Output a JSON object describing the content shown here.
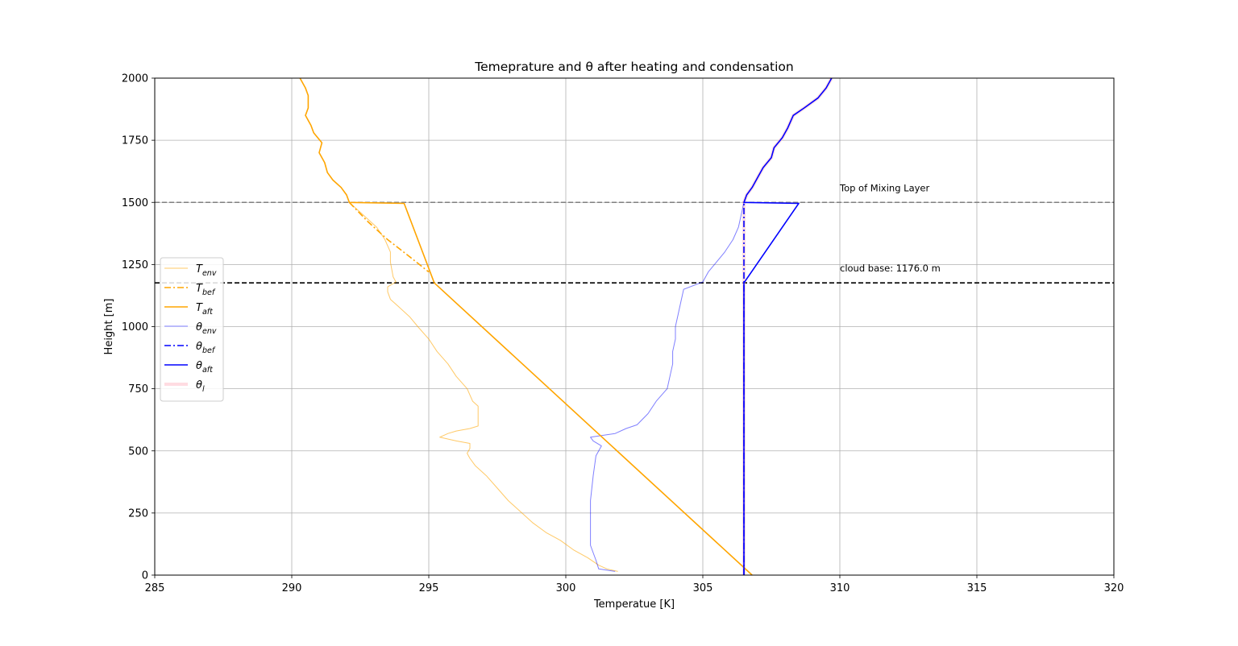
{
  "chart_data": {
    "type": "line",
    "title": "Temeprature and θ after heating and condensation",
    "xlabel": "Temperatue [K]",
    "ylabel": "Height [m]",
    "xlim": [
      285,
      320
    ],
    "ylim": [
      0,
      2000
    ],
    "xticks": [
      "285",
      "290",
      "295",
      "300",
      "305",
      "310",
      "315",
      "320"
    ],
    "yticks": [
      "0",
      "250",
      "500",
      "750",
      "1000",
      "1250",
      "1500",
      "1750",
      "2000"
    ],
    "grid": true,
    "legend_position": "center-left",
    "colors": {
      "orange": "#ffa500",
      "blue": "#0000ff",
      "pink": "#ffc0cb",
      "gray": "#808080",
      "black": "#000000"
    },
    "annotations": [
      {
        "name": "top-of-mixing-layer",
        "text": "Top of Mixing Layer",
        "x": 310,
        "y": 1545
      },
      {
        "name": "cloud-base",
        "text": "cloud base: 1176.0 m",
        "x": 310,
        "y": 1222
      }
    ],
    "hlines": [
      {
        "name": "mixing-layer-top-line",
        "y": 1500,
        "style": "dashed",
        "color": "#808080"
      },
      {
        "name": "cloud-base-line",
        "y": 1176,
        "style": "dashed",
        "color": "#000000"
      }
    ],
    "series": [
      {
        "key": "t-env",
        "name": "T_env",
        "legend_main": "T",
        "legend_sub": "env",
        "color": "#ffa500",
        "opacity": 0.6,
        "width": 1,
        "dash": "",
        "points": [
          [
            301.9,
            15
          ],
          [
            301.5,
            25
          ],
          [
            301.2,
            40
          ],
          [
            300.8,
            70
          ],
          [
            300.3,
            100
          ],
          [
            299.8,
            140
          ],
          [
            299.3,
            170
          ],
          [
            298.8,
            210
          ],
          [
            298.4,
            250
          ],
          [
            297.9,
            300
          ],
          [
            297.5,
            350
          ],
          [
            297.1,
            400
          ],
          [
            296.7,
            440
          ],
          [
            296.5,
            470
          ],
          [
            296.4,
            490
          ],
          [
            296.5,
            510
          ],
          [
            296.5,
            530
          ],
          [
            296.0,
            540
          ],
          [
            295.4,
            555
          ],
          [
            295.7,
            570
          ],
          [
            296.0,
            580
          ],
          [
            296.5,
            590
          ],
          [
            296.8,
            600
          ],
          [
            296.8,
            680
          ],
          [
            296.6,
            700
          ],
          [
            296.4,
            750
          ],
          [
            296.0,
            800
          ],
          [
            295.7,
            850
          ],
          [
            295.3,
            900
          ],
          [
            295.0,
            950
          ],
          [
            294.6,
            1000
          ],
          [
            294.3,
            1040
          ],
          [
            293.9,
            1080
          ],
          [
            293.6,
            1110
          ],
          [
            293.5,
            1140
          ],
          [
            293.5,
            1160
          ],
          [
            293.8,
            1180
          ],
          [
            293.7,
            1200
          ],
          [
            293.6,
            1260
          ],
          [
            293.6,
            1300
          ],
          [
            293.4,
            1350
          ],
          [
            293.1,
            1400
          ],
          [
            292.7,
            1440
          ],
          [
            292.4,
            1470
          ],
          [
            292.1,
            1500
          ],
          [
            292.0,
            1530
          ],
          [
            291.8,
            1560
          ],
          [
            291.5,
            1590
          ],
          [
            291.3,
            1620
          ],
          [
            291.2,
            1660
          ],
          [
            291.0,
            1700
          ],
          [
            291.1,
            1740
          ],
          [
            290.8,
            1780
          ],
          [
            290.7,
            1810
          ],
          [
            290.5,
            1850
          ],
          [
            290.6,
            1880
          ],
          [
            290.6,
            1930
          ],
          [
            290.5,
            1960
          ],
          [
            290.3,
            2000
          ]
        ]
      },
      {
        "key": "t-bef",
        "name": "T_bef",
        "legend_main": "T",
        "legend_sub": "bef",
        "color": "#ffa500",
        "opacity": 1,
        "width": 1.6,
        "dash": "8 3 2 3",
        "points": [
          [
            292.1,
            1500
          ],
          [
            292.8,
            1420
          ],
          [
            293.5,
            1350
          ],
          [
            294.2,
            1290
          ],
          [
            295.0,
            1220
          ]
        ]
      },
      {
        "key": "t-aft",
        "name": "T_aft",
        "legend_main": "T",
        "legend_sub": "aft",
        "color": "#ffa500",
        "opacity": 1,
        "width": 1.6,
        "dash": "",
        "points": [
          [
            306.8,
            0
          ],
          [
            295.2,
            1176
          ],
          [
            294.1,
            1496
          ],
          [
            292.1,
            1500
          ],
          [
            292.0,
            1530
          ],
          [
            291.8,
            1560
          ],
          [
            291.5,
            1590
          ],
          [
            291.3,
            1620
          ],
          [
            291.2,
            1660
          ],
          [
            291.0,
            1700
          ],
          [
            291.1,
            1740
          ],
          [
            290.8,
            1780
          ],
          [
            290.7,
            1810
          ],
          [
            290.5,
            1850
          ],
          [
            290.6,
            1880
          ],
          [
            290.6,
            1930
          ],
          [
            290.5,
            1960
          ],
          [
            290.3,
            2000
          ]
        ]
      },
      {
        "key": "theta-env",
        "name": "θ_env",
        "legend_main": "θ",
        "legend_sub": "env",
        "color": "#0000ff",
        "opacity": 0.5,
        "width": 1,
        "dash": "",
        "points": [
          [
            301.8,
            15
          ],
          [
            301.2,
            25
          ],
          [
            301.1,
            60
          ],
          [
            300.9,
            120
          ],
          [
            300.9,
            200
          ],
          [
            300.9,
            300
          ],
          [
            301.0,
            400
          ],
          [
            301.1,
            480
          ],
          [
            301.3,
            520
          ],
          [
            301.0,
            540
          ],
          [
            300.9,
            555
          ],
          [
            301.8,
            570
          ],
          [
            302.2,
            590
          ],
          [
            302.6,
            605
          ],
          [
            303.0,
            650
          ],
          [
            303.3,
            700
          ],
          [
            303.7,
            750
          ],
          [
            303.8,
            800
          ],
          [
            303.9,
            850
          ],
          [
            303.9,
            900
          ],
          [
            304.0,
            950
          ],
          [
            304.0,
            1000
          ],
          [
            304.1,
            1050
          ],
          [
            304.2,
            1100
          ],
          [
            304.3,
            1150
          ],
          [
            305.0,
            1180
          ],
          [
            305.2,
            1220
          ],
          [
            305.5,
            1260
          ],
          [
            305.8,
            1300
          ],
          [
            306.1,
            1350
          ],
          [
            306.3,
            1400
          ],
          [
            306.4,
            1450
          ],
          [
            306.5,
            1500
          ],
          [
            306.6,
            1530
          ],
          [
            306.8,
            1560
          ],
          [
            307.0,
            1600
          ],
          [
            307.2,
            1640
          ],
          [
            307.5,
            1680
          ],
          [
            307.6,
            1720
          ],
          [
            307.9,
            1760
          ],
          [
            308.1,
            1800
          ],
          [
            308.3,
            1850
          ],
          [
            308.7,
            1880
          ],
          [
            309.2,
            1920
          ],
          [
            309.5,
            1960
          ],
          [
            309.7,
            2000
          ]
        ]
      },
      {
        "key": "theta-bef",
        "name": "θ_bef",
        "legend_main": "θ",
        "legend_sub": "bef",
        "color": "#0000ff",
        "opacity": 1,
        "width": 1.6,
        "dash": "8 3 2 3",
        "points": [
          [
            306.5,
            0
          ],
          [
            306.5,
            1500
          ]
        ]
      },
      {
        "key": "theta-aft",
        "name": "θ_aft",
        "legend_main": "θ",
        "legend_sub": "aft",
        "color": "#0000ff",
        "opacity": 1,
        "width": 1.6,
        "dash": "",
        "points": [
          [
            306.5,
            0
          ],
          [
            306.5,
            1176
          ],
          [
            308.5,
            1496
          ],
          [
            306.5,
            1500
          ],
          [
            306.6,
            1530
          ],
          [
            306.8,
            1560
          ],
          [
            307.0,
            1600
          ],
          [
            307.2,
            1640
          ],
          [
            307.5,
            1680
          ],
          [
            307.6,
            1720
          ],
          [
            307.9,
            1760
          ],
          [
            308.1,
            1800
          ],
          [
            308.3,
            1850
          ],
          [
            308.7,
            1880
          ],
          [
            309.2,
            1920
          ],
          [
            309.5,
            1960
          ],
          [
            309.7,
            2000
          ]
        ]
      },
      {
        "key": "theta-l",
        "name": "θ_l",
        "legend_main": "θ",
        "legend_sub": "l",
        "color": "#ffc0cb",
        "opacity": 0.55,
        "width": 4,
        "dash": "",
        "points": [
          [
            306.5,
            0
          ],
          [
            306.5,
            1500
          ],
          [
            306.6,
            1530
          ],
          [
            306.8,
            1560
          ],
          [
            307.0,
            1600
          ],
          [
            307.2,
            1640
          ],
          [
            307.5,
            1680
          ],
          [
            307.6,
            1720
          ],
          [
            307.9,
            1760
          ],
          [
            308.1,
            1800
          ],
          [
            308.3,
            1850
          ],
          [
            308.7,
            1880
          ],
          [
            309.2,
            1920
          ],
          [
            309.5,
            1960
          ],
          [
            309.7,
            2000
          ]
        ]
      }
    ]
  }
}
